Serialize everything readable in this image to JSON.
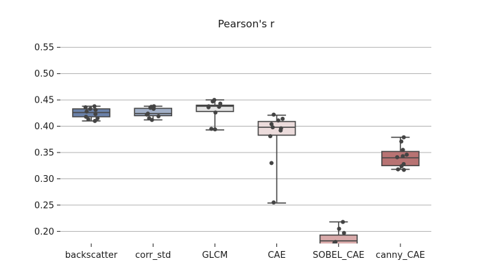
{
  "chart_data": {
    "type": "box",
    "title": "Pearson's r",
    "xlabel": "",
    "ylabel": "",
    "ylim": [
      0.177,
      0.562
    ],
    "yticks": [
      0.2,
      0.25,
      0.3,
      0.35,
      0.4,
      0.45,
      0.5,
      0.55
    ],
    "ytick_labels": [
      "0.20",
      "0.25",
      "0.30",
      "0.35",
      "0.40",
      "0.45",
      "0.50",
      "0.55"
    ],
    "grid": "y",
    "categories": [
      "backscatter",
      "corr_std",
      "GLCM",
      "CAE",
      "SOBEL_CAE",
      "canny_CAE"
    ],
    "boxes": [
      {
        "name": "backscatter",
        "color": "#6b82aa",
        "whisker_low": 0.41,
        "q1": 0.418,
        "median": 0.426,
        "q3": 0.433,
        "whisker_high": 0.438,
        "points": [
          0.438,
          0.436,
          0.433,
          0.431,
          0.428,
          0.423,
          0.418,
          0.415,
          0.413,
          0.41
        ]
      },
      {
        "name": "corr_std",
        "color": "#a2b0c8",
        "whisker_low": 0.412,
        "q1": 0.42,
        "median": 0.424,
        "q3": 0.434,
        "whisker_high": 0.438,
        "points": [
          0.438,
          0.437,
          0.435,
          0.433,
          0.424,
          0.422,
          0.419,
          0.415,
          0.412
        ]
      },
      {
        "name": "GLCM",
        "color": "#e3e3e3",
        "whisker_low": 0.393,
        "q1": 0.428,
        "median": 0.438,
        "q3": 0.44,
        "whisker_high": 0.45,
        "points": [
          0.45,
          0.447,
          0.443,
          0.438,
          0.437,
          0.436,
          0.426,
          0.395,
          0.394
        ]
      },
      {
        "name": "CAE",
        "color": "#ecdcdc",
        "whisker_low": 0.254,
        "q1": 0.383,
        "median": 0.398,
        "q3": 0.409,
        "whisker_high": 0.421,
        "points": [
          0.422,
          0.414,
          0.411,
          0.404,
          0.398,
          0.396,
          0.392,
          0.381,
          0.33,
          0.255
        ]
      },
      {
        "name": "SOBEL_CAE",
        "color": "#d9aaaa",
        "whisker_low": 0.17,
        "q1": 0.173,
        "median": 0.182,
        "q3": 0.193,
        "whisker_high": 0.218,
        "points": [
          0.218,
          0.205,
          0.197,
          0.18,
          0.178
        ]
      },
      {
        "name": "canny_CAE",
        "color": "#b87373",
        "whisker_low": 0.318,
        "q1": 0.325,
        "median": 0.34,
        "q3": 0.352,
        "whisker_high": 0.379,
        "points": [
          0.379,
          0.371,
          0.355,
          0.346,
          0.343,
          0.341,
          0.328,
          0.324,
          0.318,
          0.317
        ]
      }
    ]
  }
}
